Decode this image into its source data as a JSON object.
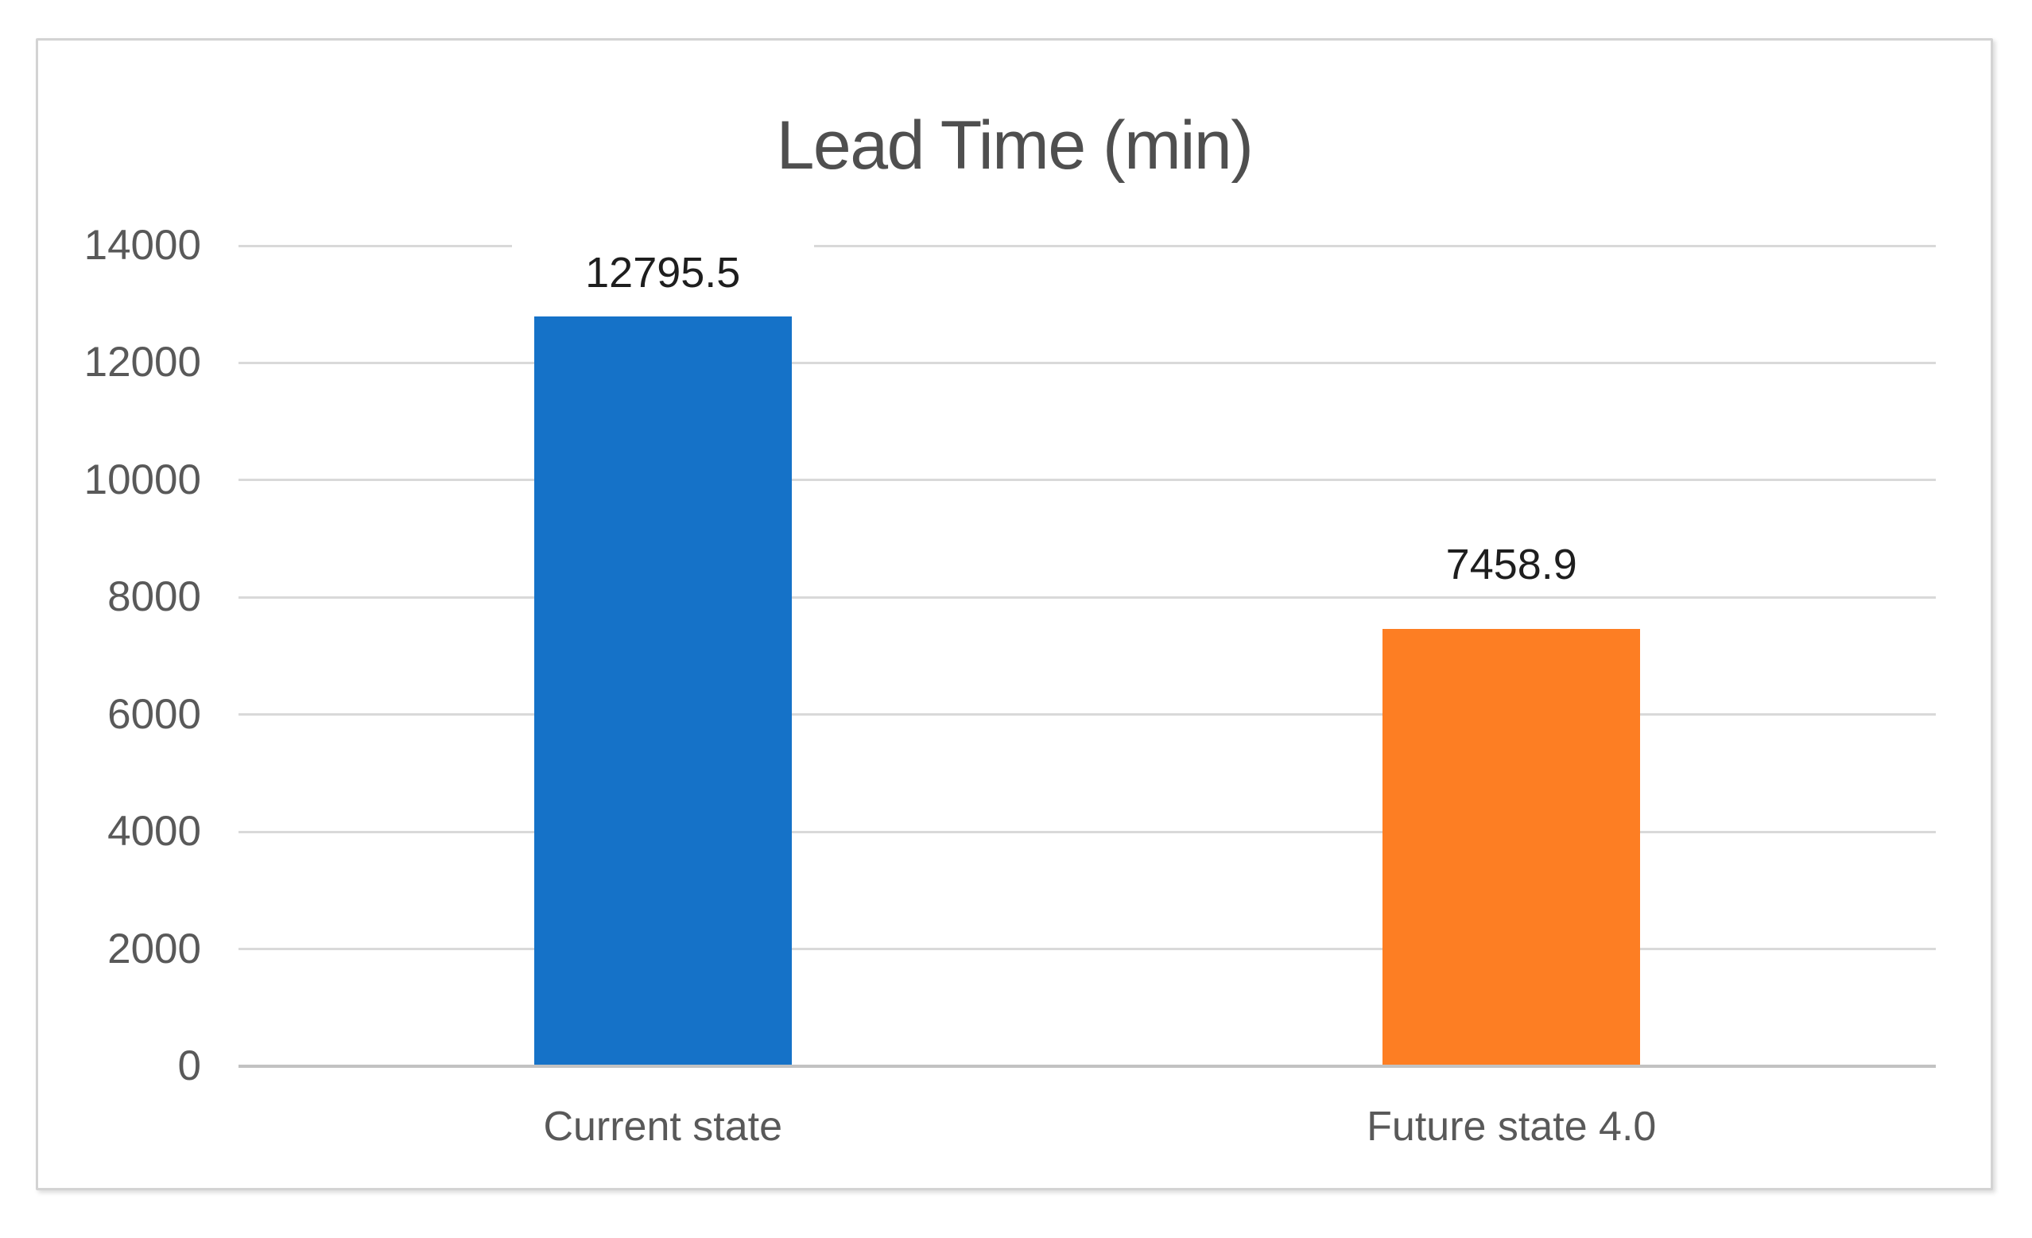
{
  "chart_data": {
    "type": "bar",
    "title": "Lead Time (min)",
    "categories": [
      "Current state",
      "Future state 4.0"
    ],
    "values": [
      12795.5,
      7458.9
    ],
    "data_labels": [
      "12795.5",
      "7458.9"
    ],
    "series_colors": [
      "#1572C8",
      "#FD7E23"
    ],
    "xlabel": "",
    "ylabel": "",
    "ylim": [
      0,
      14000
    ],
    "ytick_step": 2000,
    "ytick_labels": [
      "0",
      "2000",
      "4000",
      "6000",
      "8000",
      "10000",
      "12000",
      "14000"
    ],
    "grid": true,
    "gridline_orientation": "horizontal",
    "legend": false
  },
  "styles": {
    "title_color": "#4F4F4F",
    "axis_text_color": "#595959",
    "data_label_color": "#1E1E1E",
    "gridline_color": "#D9D9D9",
    "axis_line_color": "#C2C2C2",
    "chart_border_color": "#D3D3D3",
    "background_color": "#FFFFFF"
  }
}
